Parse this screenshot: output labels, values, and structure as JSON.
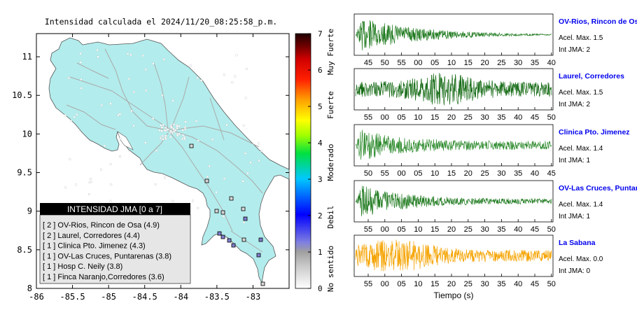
{
  "map": {
    "title": "Intensidad calculada el 2024/11/20_08:25:58_p.m.",
    "x_ticks": [
      "-86",
      "-85.5",
      "-85",
      "-84.5",
      "-84",
      "-83.5",
      "-83"
    ],
    "y_ticks": [
      "8",
      "8.5",
      "9",
      "9.5",
      "10",
      "10.5",
      "11"
    ],
    "xlim": [
      -86,
      -82.5
    ],
    "ylim": [
      8,
      11.3
    ],
    "land_color": "#b3ecec",
    "legend": {
      "title": "INTENSIDAD JMA [0 a 7]",
      "items": [
        "[ 2 ]  OV-Rios, Rincon de Osa (4.9)",
        "[ 2 ]  Laurel, Corredores (4.4)",
        "[ 1 ]  Clinica Pto. Jimenez (4.3)",
        "[ 1 ]  OV-Las Cruces, Puntarenas (3.8)",
        "[ 1 ]  Hosp C. Neily (3.8)",
        "[ 1 ]  Finca Naranjo,Corredores (3.6)"
      ]
    }
  },
  "colorbar": {
    "ticks": [
      "0",
      "1",
      "2",
      "3",
      "4",
      "5",
      "6",
      "7"
    ],
    "labels": [
      "No sentido",
      "Debil",
      "Moderado",
      "Fuerte",
      "Muy Fuerte"
    ]
  },
  "chart_data": {
    "type": "line",
    "xlabel": "Tiempo (s)",
    "traces": [
      {
        "station": "OV-Rios, Rincon de Os",
        "acel": "Acel. Max. 1.5",
        "jma": "Int JMA: 2",
        "color": "#1f7a1f",
        "x_ticks": [
          "45",
          "50",
          "55",
          "00",
          "05",
          "10",
          "15",
          "20",
          "25",
          "30",
          "35",
          "40"
        ],
        "name_color": "#0000ee"
      },
      {
        "station": "Laurel, Corredores",
        "acel": "Acel. Max. 1.5",
        "jma": "Int JMA: 2",
        "color": "#156b15",
        "x_ticks": [
          "55",
          "00",
          "05",
          "10",
          "15",
          "20",
          "25",
          "30",
          "35",
          "40",
          "45",
          "50"
        ],
        "name_color": "#0000ee"
      },
      {
        "station": "Clinica Pto. Jimenez",
        "acel": "Acel. Max. 1.4",
        "jma": "Int JMA: 1",
        "color": "#2e8b2e",
        "x_ticks": [
          "50",
          "55",
          "00",
          "05",
          "10",
          "15",
          "20",
          "25",
          "30",
          "35",
          "40",
          "45"
        ],
        "name_color": "#0000ee"
      },
      {
        "station": "OV-Las Cruces, Puntar",
        "acel": "Acel. Max. 1.4",
        "jma": "Int JMA: 1",
        "color": "#1f7a1f",
        "x_ticks": [
          "55",
          "00",
          "05",
          "10",
          "15",
          "20",
          "25",
          "30",
          "35",
          "40",
          "45",
          "50"
        ],
        "name_color": "#0000ee"
      },
      {
        "station": "La Sabana",
        "acel": "Acel. Max. 0.0",
        "jma": "Int JMA: 0",
        "color": "#f5a300",
        "x_ticks": [
          "55",
          "00",
          "05",
          "10",
          "15",
          "20",
          "25",
          "30",
          "35",
          "40",
          "45",
          "50"
        ],
        "name_color": "#0000ee"
      }
    ]
  }
}
